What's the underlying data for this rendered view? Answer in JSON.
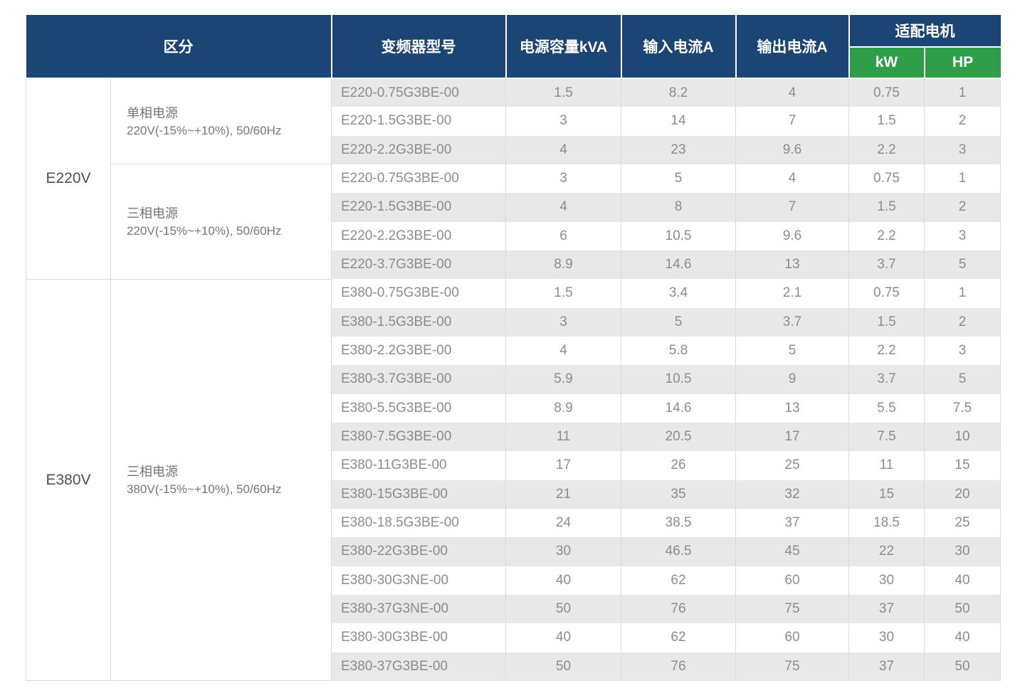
{
  "table": {
    "headers": {
      "category": "区分",
      "model": "变频器型号",
      "capacity": "电源容量kVA",
      "input_current": "输入电流A",
      "output_current": "输出电流A",
      "motor": "适配电机",
      "motor_kw": "kW",
      "motor_hp": "HP"
    },
    "colors": {
      "header_navy": "#1B4575",
      "header_green": "#2E9E48",
      "stripe_gray": "#E8E8E8",
      "border_gray": "#D9D9D9",
      "data_text": "#8C8C8C"
    },
    "groups": [
      {
        "voltage": "E220V",
        "sections": [
          {
            "phase_title": "单相电源",
            "phase_subtitle": "220V(-15%~+10%), 50/60Hz",
            "rows": [
              [
                "E220-0.75G3BE-00",
                "1.5",
                "8.2",
                "4",
                "0.75",
                "1"
              ],
              [
                "E220-1.5G3BE-00",
                "3",
                "14",
                "7",
                "1.5",
                "2"
              ],
              [
                "E220-2.2G3BE-00",
                "4",
                "23",
                "9.6",
                "2.2",
                "3"
              ]
            ]
          },
          {
            "phase_title": "三相电源",
            "phase_subtitle": "220V(-15%~+10%), 50/60Hz",
            "rows": [
              [
                "E220-0.75G3BE-00",
                "3",
                "5",
                "4",
                "0.75",
                "1"
              ],
              [
                "E220-1.5G3BE-00",
                "4",
                "8",
                "7",
                "1.5",
                "2"
              ],
              [
                "E220-2.2G3BE-00",
                "6",
                "10.5",
                "9.6",
                "2.2",
                "3"
              ],
              [
                "E220-3.7G3BE-00",
                "8.9",
                "14.6",
                "13",
                "3.7",
                "5"
              ]
            ]
          }
        ]
      },
      {
        "voltage": "E380V",
        "sections": [
          {
            "phase_title": "三相电源",
            "phase_subtitle": "380V(-15%~+10%), 50/60Hz",
            "rows": [
              [
                "E380-0.75G3BE-00",
                "1.5",
                "3.4",
                "2.1",
                "0.75",
                "1"
              ],
              [
                "E380-1.5G3BE-00",
                "3",
                "5",
                "3.7",
                "1.5",
                "2"
              ],
              [
                "E380-2.2G3BE-00",
                "4",
                "5.8",
                "5",
                "2.2",
                "3"
              ],
              [
                "E380-3.7G3BE-00",
                "5.9",
                "10.5",
                "9",
                "3.7",
                "5"
              ],
              [
                "E380-5.5G3BE-00",
                "8.9",
                "14.6",
                "13",
                "5.5",
                "7.5"
              ],
              [
                "E380-7.5G3BE-00",
                "11",
                "20.5",
                "17",
                "7.5",
                "10"
              ],
              [
                "E380-11G3BE-00",
                "17",
                "26",
                "25",
                "11",
                "15"
              ],
              [
                "E380-15G3BE-00",
                "21",
                "35",
                "32",
                "15",
                "20"
              ],
              [
                "E380-18.5G3BE-00",
                "24",
                "38.5",
                "37",
                "18.5",
                "25"
              ],
              [
                "E380-22G3BE-00",
                "30",
                "46.5",
                "45",
                "22",
                "30"
              ],
              [
                "E380-30G3NE-00",
                "40",
                "62",
                "60",
                "30",
                "40"
              ],
              [
                "E380-37G3NE-00",
                "50",
                "76",
                "75",
                "37",
                "50"
              ],
              [
                "E380-30G3BE-00",
                "40",
                "62",
                "60",
                "30",
                "40"
              ],
              [
                "E380-37G3BE-00",
                "50",
                "76",
                "75",
                "37",
                "50"
              ]
            ]
          }
        ]
      }
    ]
  }
}
